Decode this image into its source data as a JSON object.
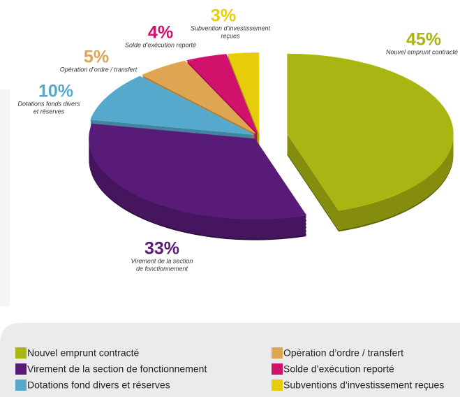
{
  "chart_data": {
    "type": "pie",
    "categories": [
      "Nouvel emprunt contracté",
      "Virement de la section de fonctionnement",
      "Dotations fond divers et réserves",
      "Opération d’ordre / transfert",
      "Solde d’exécution reporté",
      "Subventions d’investissement reçues"
    ],
    "values": [
      45,
      33,
      10,
      5,
      4,
      3
    ],
    "value_labels": [
      "45%",
      "33%",
      "10%",
      "5%",
      "4%",
      "3%"
    ],
    "labels": [
      [
        "Nouvel emprunt contracté"
      ],
      [
        "Virement de la section",
        "de fonctionnement"
      ],
      [
        "Dotations fonds divers",
        "et réserves"
      ],
      [
        "Opération d’ordre / transfert"
      ],
      [
        "Solde d’exécution reporté"
      ],
      [
        "Subvention d’investissement",
        "reçues"
      ]
    ],
    "colors": [
      "#a9b512",
      "#581b78",
      "#56a9cc",
      "#dea552",
      "#d0126c",
      "#e6cd0c"
    ]
  }
}
